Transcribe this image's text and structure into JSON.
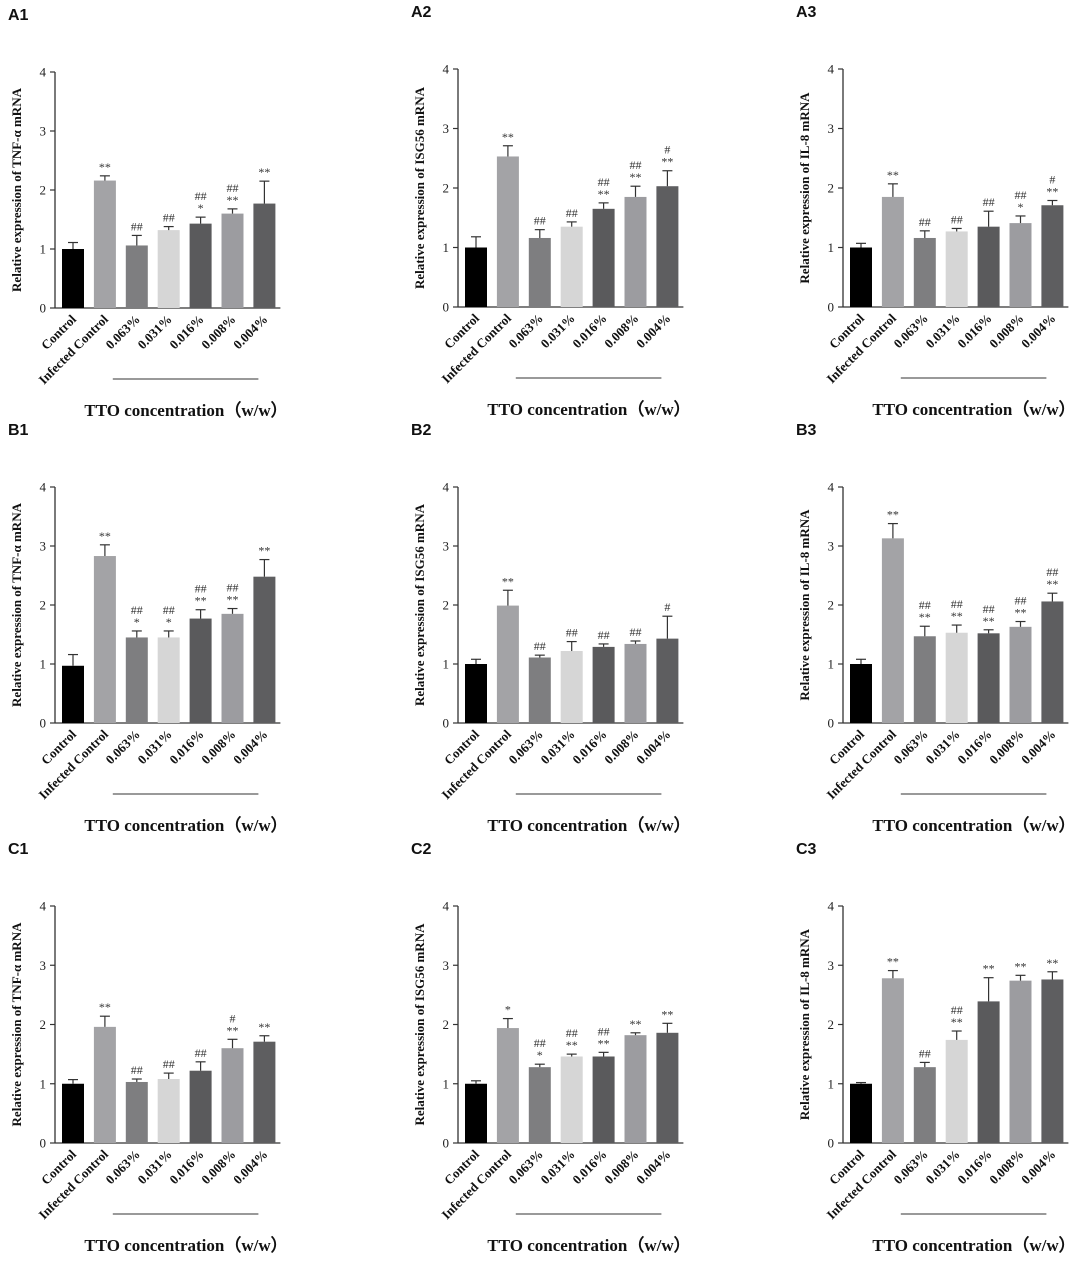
{
  "colors": [
    "#000000",
    "#a3a3a6",
    "#7e7e80",
    "#d6d6d6",
    "#5a5a5c",
    "#9c9ca0",
    "#5e5e60"
  ],
  "chart_data": [
    {
      "panel": "A1",
      "type": "bar",
      "ylabel": "Relative expression of TNF-α mRNA",
      "categories": [
        "Control",
        "Infected Control",
        "0.063%",
        "0.031%",
        "0.016%",
        "0.008%",
        "0.004%"
      ],
      "values": [
        1.0,
        2.16,
        1.06,
        1.32,
        1.43,
        1.6,
        1.77
      ],
      "errors": [
        0.11,
        0.08,
        0.17,
        0.06,
        0.11,
        0.08,
        0.38
      ],
      "annotations": [
        [],
        [
          "**"
        ],
        [
          "##"
        ],
        [
          "##"
        ],
        [
          "##",
          "*"
        ],
        [
          "##",
          "**"
        ],
        [
          "**"
        ]
      ],
      "xlabel": "TTO concentration（w/w）",
      "ylim": [
        0,
        4
      ],
      "yticks": [
        "0",
        "1",
        "2",
        "3",
        "4"
      ]
    },
    {
      "panel": "A2",
      "type": "bar",
      "ylabel": "Relative expression of ISG56 mRNA",
      "categories": [
        "Control",
        "Infected Control",
        "0.063%",
        "0.031%",
        "0.016%",
        "0.008%",
        "0.004%"
      ],
      "values": [
        1.0,
        2.53,
        1.16,
        1.35,
        1.65,
        1.85,
        2.03
      ],
      "errors": [
        0.18,
        0.18,
        0.14,
        0.08,
        0.1,
        0.18,
        0.26
      ],
      "annotations": [
        [],
        [
          "**"
        ],
        [
          "##"
        ],
        [
          "##"
        ],
        [
          "##",
          "**"
        ],
        [
          "##",
          "**"
        ],
        [
          "#",
          "**"
        ]
      ],
      "xlabel": "TTO concentration（w/w）",
      "ylim": [
        0,
        4
      ],
      "yticks": [
        "0",
        "1",
        "2",
        "3",
        "4"
      ]
    },
    {
      "panel": "A3",
      "type": "bar",
      "ylabel": "Relative expression of IL-8 mRNA",
      "categories": [
        "Control",
        "Infected Control",
        "0.063%",
        "0.031%",
        "0.016%",
        "0.008%",
        "0.004%"
      ],
      "values": [
        1.0,
        1.85,
        1.16,
        1.27,
        1.35,
        1.41,
        1.71
      ],
      "errors": [
        0.07,
        0.22,
        0.12,
        0.05,
        0.26,
        0.12,
        0.08
      ],
      "annotations": [
        [],
        [
          "**"
        ],
        [
          "##"
        ],
        [
          "##"
        ],
        [
          "##"
        ],
        [
          "##",
          "*"
        ],
        [
          "#",
          "**"
        ]
      ],
      "xlabel": "TTO concentration（w/w）",
      "ylim": [
        0,
        4
      ],
      "yticks": [
        "0",
        "1",
        "2",
        "3",
        "4"
      ]
    },
    {
      "panel": "B1",
      "type": "bar",
      "ylabel": "Relative expression of TNF-α mRNA",
      "categories": [
        "Control",
        "Infected Control",
        "0.063%",
        "0.031%",
        "0.016%",
        "0.008%",
        "0.004%"
      ],
      "values": [
        0.97,
        2.83,
        1.45,
        1.45,
        1.77,
        1.85,
        2.48
      ],
      "errors": [
        0.19,
        0.19,
        0.11,
        0.11,
        0.15,
        0.09,
        0.29
      ],
      "annotations": [
        [],
        [
          "**"
        ],
        [
          "##",
          "*"
        ],
        [
          "##",
          "*"
        ],
        [
          "##",
          "**"
        ],
        [
          "##",
          "**"
        ],
        [
          "**"
        ]
      ],
      "xlabel": "TTO concentration（w/w）",
      "ylim": [
        0,
        4
      ],
      "yticks": [
        "0",
        "1",
        "2",
        "3",
        "4"
      ]
    },
    {
      "panel": "B2",
      "type": "bar",
      "ylabel": "Relative expression of ISG56 mRNA",
      "categories": [
        "Control",
        "Infected Control",
        "0.063%",
        "0.031%",
        "0.016%",
        "0.008%",
        "0.004%"
      ],
      "values": [
        1.0,
        1.99,
        1.11,
        1.22,
        1.29,
        1.34,
        1.43
      ],
      "errors": [
        0.08,
        0.26,
        0.04,
        0.16,
        0.05,
        0.05,
        0.38
      ],
      "annotations": [
        [],
        [
          "**"
        ],
        [
          "##"
        ],
        [
          "##"
        ],
        [
          "##"
        ],
        [
          "##"
        ],
        [
          "#"
        ]
      ],
      "xlabel": "TTO concentration（w/w）",
      "ylim": [
        0,
        4
      ],
      "yticks": [
        "0",
        "1",
        "2",
        "3",
        "4"
      ]
    },
    {
      "panel": "B3",
      "type": "bar",
      "ylabel": "Relative expression of IL-8 mRNA",
      "categories": [
        "Control",
        "Infected Control",
        "0.063%",
        "0.031%",
        "0.016%",
        "0.008%",
        "0.004%"
      ],
      "values": [
        1.0,
        3.13,
        1.47,
        1.53,
        1.52,
        1.63,
        2.06
      ],
      "errors": [
        0.08,
        0.25,
        0.17,
        0.13,
        0.06,
        0.09,
        0.14
      ],
      "annotations": [
        [],
        [
          "**"
        ],
        [
          "##",
          "**"
        ],
        [
          "##",
          "**"
        ],
        [
          "##",
          "**"
        ],
        [
          "##",
          "**"
        ],
        [
          "##",
          "**"
        ]
      ],
      "xlabel": "TTO concentration（w/w）",
      "ylim": [
        0,
        4
      ],
      "yticks": [
        "0",
        "1",
        "2",
        "3",
        "4"
      ]
    },
    {
      "panel": "C1",
      "type": "bar",
      "ylabel": "Relative expression of TNF-α mRNA",
      "categories": [
        "Control",
        "Infected Control",
        "0.063%",
        "0.031%",
        "0.016%",
        "0.008%",
        "0.004%"
      ],
      "values": [
        1.0,
        1.96,
        1.03,
        1.08,
        1.22,
        1.6,
        1.71
      ],
      "errors": [
        0.07,
        0.18,
        0.05,
        0.1,
        0.15,
        0.15,
        0.1
      ],
      "annotations": [
        [],
        [
          "**"
        ],
        [
          "##"
        ],
        [
          "##"
        ],
        [
          "##"
        ],
        [
          "#",
          "**"
        ],
        [
          "**"
        ]
      ],
      "xlabel": "TTO concentration（w/w）",
      "ylim": [
        0,
        4
      ],
      "yticks": [
        "0",
        "1",
        "2",
        "3",
        "4"
      ]
    },
    {
      "panel": "C2",
      "type": "bar",
      "ylabel": "Relative expression of ISG56 mRNA",
      "categories": [
        "Control",
        "Infected Control",
        "0.063%",
        "0.031%",
        "0.016%",
        "0.008%",
        "0.004%"
      ],
      "values": [
        1.0,
        1.94,
        1.28,
        1.46,
        1.46,
        1.82,
        1.86
      ],
      "errors": [
        0.05,
        0.16,
        0.05,
        0.04,
        0.07,
        0.04,
        0.16
      ],
      "annotations": [
        [],
        [
          "*"
        ],
        [
          "##",
          "*"
        ],
        [
          "##",
          "**"
        ],
        [
          "##",
          "**"
        ],
        [
          "**"
        ],
        [
          "**"
        ]
      ],
      "xlabel": "TTO concentration（w/w）",
      "ylim": [
        0,
        4
      ],
      "yticks": [
        "0",
        "1",
        "2",
        "3",
        "4"
      ]
    },
    {
      "panel": "C3",
      "type": "bar",
      "ylabel": "Relative expression of IL-8 mRNA",
      "categories": [
        "Control",
        "Infected Control",
        "0.063%",
        "0.031%",
        "0.016%",
        "0.008%",
        "0.004%"
      ],
      "values": [
        1.0,
        2.78,
        1.28,
        1.74,
        2.39,
        2.74,
        2.76
      ],
      "errors": [
        0.02,
        0.13,
        0.08,
        0.15,
        0.4,
        0.09,
        0.13
      ],
      "annotations": [
        [],
        [
          "**"
        ],
        [
          "##"
        ],
        [
          "##",
          "**"
        ],
        [
          "**"
        ],
        [
          "**"
        ],
        [
          "**"
        ]
      ],
      "xlabel": "TTO concentration（w/w）",
      "ylim": [
        0,
        4
      ],
      "yticks": [
        "0",
        "1",
        "2",
        "3",
        "4"
      ]
    }
  ]
}
